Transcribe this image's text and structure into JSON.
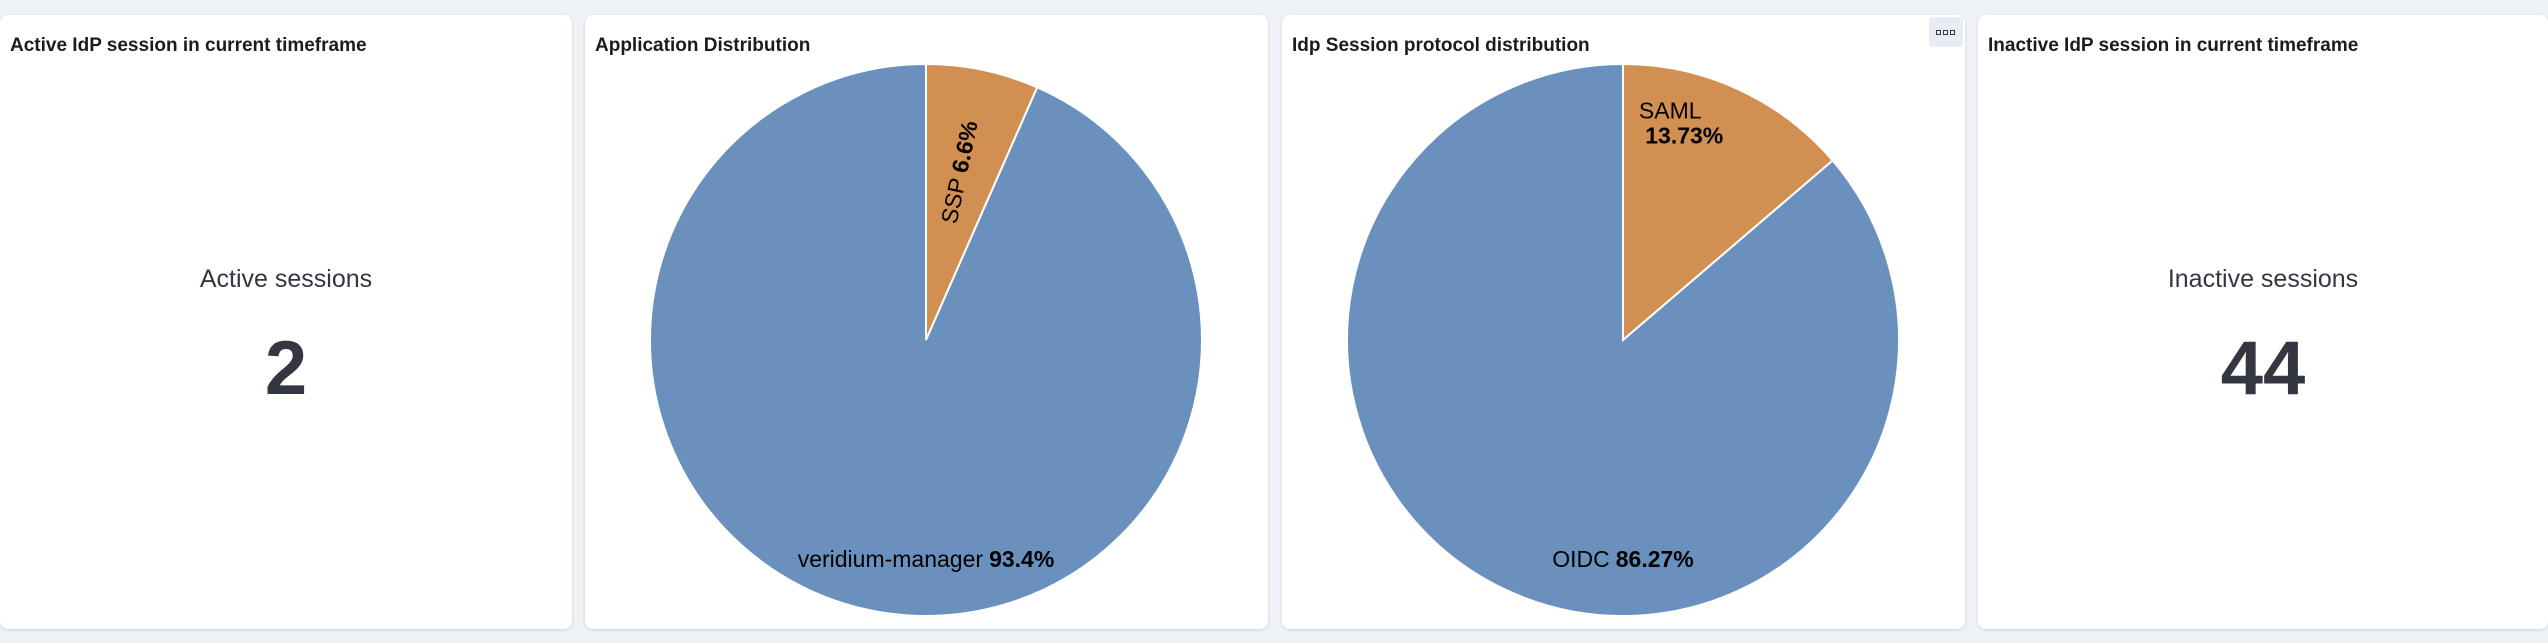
{
  "panels": [
    {
      "title": "Active IdP session in current timeframe",
      "label": "Active sessions",
      "value": 2
    },
    {
      "title": "Application Distribution",
      "chart": {
        "type": "pie",
        "categories": [
          "SSP",
          "veridium-manager"
        ],
        "values": [
          6.6,
          93.4
        ],
        "value_labels": [
          "6.6%",
          "93.4%"
        ],
        "colors": [
          "#d18f52",
          "#6a91bd"
        ]
      }
    },
    {
      "title": "Idp Session protocol distribution",
      "chart": {
        "type": "pie",
        "categories": [
          "SAML",
          "OIDC"
        ],
        "values": [
          13.73,
          86.27
        ],
        "value_labels": [
          "13.73%",
          "86.27%"
        ],
        "colors": [
          "#d18f52",
          "#6a91bd"
        ]
      }
    },
    {
      "title": "Inactive IdP session in current timeframe",
      "label": "Inactive sessions",
      "value": 44
    }
  ]
}
